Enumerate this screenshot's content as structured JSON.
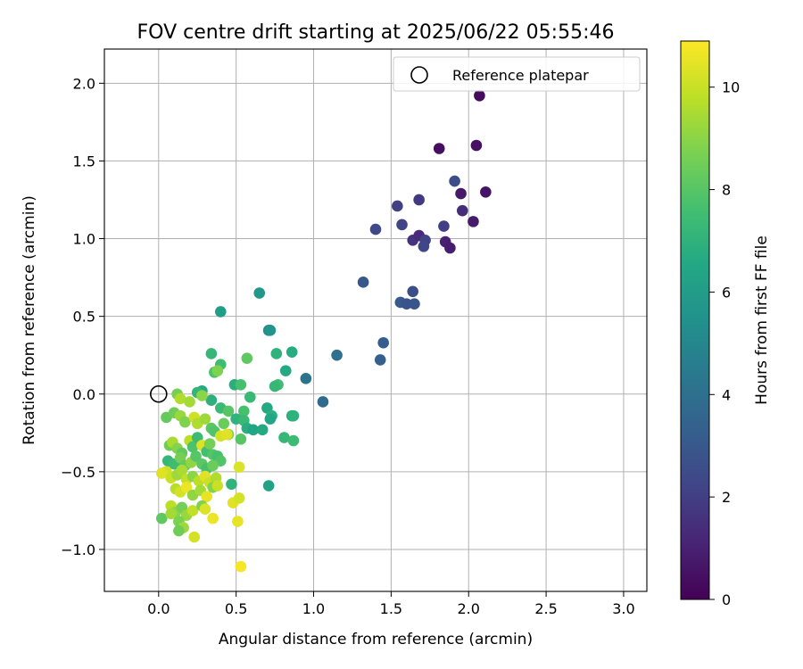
{
  "chart_data": {
    "type": "scatter",
    "title": "FOV centre drift starting at 2025/06/22 05:55:46",
    "xlabel": "Angular distance from reference (arcmin)",
    "ylabel": "Rotation from reference (arcmin)",
    "xlim": [
      -0.35,
      3.15
    ],
    "ylim": [
      -1.27,
      2.22
    ],
    "xticks": [
      0.0,
      0.5,
      1.0,
      1.5,
      2.0,
      2.5,
      3.0
    ],
    "xtick_labels": [
      "0.0",
      "0.5",
      "1.0",
      "1.5",
      "2.0",
      "2.5",
      "3.0"
    ],
    "yticks": [
      -1.0,
      -0.5,
      0.0,
      0.5,
      1.0,
      1.5,
      2.0
    ],
    "ytick_labels": [
      "−1.0",
      "−0.5",
      "0.0",
      "0.5",
      "1.0",
      "1.5",
      "2.0"
    ],
    "grid": true,
    "legend": {
      "placement": "top-right",
      "entries": [
        {
          "label": "Reference platepar",
          "marker": "open-circle"
        }
      ]
    },
    "reference_point": {
      "x": 0.0,
      "y": 0.0
    },
    "colorbar": {
      "label": "Hours from first FF file",
      "range": [
        0,
        10.9
      ],
      "ticks": [
        0,
        2,
        4,
        6,
        8,
        10
      ],
      "tick_labels": [
        "0",
        "2",
        "4",
        "6",
        "8",
        "10"
      ],
      "colormap": "viridis"
    },
    "points": [
      [
        2.07,
        1.92,
        0.3
      ],
      [
        1.81,
        1.58,
        0.4
      ],
      [
        2.05,
        1.6,
        0.5
      ],
      [
        1.91,
        1.37,
        2.6
      ],
      [
        2.11,
        1.3,
        0.6
      ],
      [
        1.95,
        1.29,
        0.7
      ],
      [
        1.96,
        1.18,
        1.4
      ],
      [
        2.03,
        1.11,
        0.8
      ],
      [
        1.54,
        1.21,
        2.0
      ],
      [
        1.68,
        1.25,
        1.8
      ],
      [
        1.84,
        1.08,
        2.0
      ],
      [
        1.57,
        1.09,
        2.2
      ],
      [
        1.4,
        1.06,
        2.4
      ],
      [
        1.64,
        0.99,
        1.6
      ],
      [
        1.68,
        1.02,
        1.3
      ],
      [
        1.72,
        0.99,
        2.1
      ],
      [
        1.71,
        0.95,
        2.3
      ],
      [
        1.85,
        0.98,
        1.0
      ],
      [
        1.88,
        0.94,
        0.9
      ],
      [
        1.32,
        0.72,
        3.0
      ],
      [
        1.64,
        0.66,
        2.6
      ],
      [
        1.56,
        0.59,
        3.1
      ],
      [
        1.6,
        0.58,
        2.8
      ],
      [
        1.65,
        0.58,
        2.9
      ],
      [
        1.45,
        0.33,
        3.2
      ],
      [
        1.43,
        0.22,
        3.3
      ],
      [
        1.15,
        0.25,
        4.0
      ],
      [
        0.95,
        0.1,
        4.2
      ],
      [
        1.06,
        -0.05,
        3.8
      ],
      [
        0.65,
        0.65,
        5.8
      ],
      [
        0.4,
        0.53,
        6.0
      ],
      [
        0.71,
        0.41,
        5.2
      ],
      [
        0.72,
        0.41,
        5.6
      ],
      [
        0.34,
        0.26,
        7.2
      ],
      [
        0.76,
        0.26,
        7.0
      ],
      [
        0.86,
        0.27,
        6.7
      ],
      [
        0.4,
        0.19,
        7.5
      ],
      [
        0.57,
        0.23,
        8.2
      ],
      [
        0.82,
        0.15,
        6.6
      ],
      [
        0.36,
        0.14,
        7.8
      ],
      [
        0.38,
        0.15,
        8.8
      ],
      [
        0.77,
        0.06,
        7.6
      ],
      [
        0.75,
        0.05,
        7.2
      ],
      [
        0.49,
        0.06,
        6.8
      ],
      [
        0.53,
        0.06,
        7.7
      ],
      [
        0.59,
        -0.02,
        7.3
      ],
      [
        0.34,
        -0.04,
        6.9
      ],
      [
        0.28,
        0.02,
        6.6
      ],
      [
        0.25,
        0.01,
        7.1
      ],
      [
        0.12,
        0.0,
        8.6
      ],
      [
        0.14,
        -0.03,
        9.6
      ],
      [
        0.2,
        -0.05,
        9.4
      ],
      [
        0.28,
        -0.01,
        9.0
      ],
      [
        0.7,
        -0.09,
        6.6
      ],
      [
        0.4,
        -0.09,
        7.3
      ],
      [
        0.45,
        -0.11,
        8.0
      ],
      [
        0.55,
        -0.11,
        7.7
      ],
      [
        0.73,
        -0.14,
        6.9
      ],
      [
        0.72,
        -0.16,
        6.5
      ],
      [
        0.86,
        -0.14,
        6.7
      ],
      [
        0.87,
        -0.14,
        7.0
      ],
      [
        0.5,
        -0.16,
        7.0
      ],
      [
        0.55,
        -0.17,
        7.3
      ],
      [
        0.57,
        -0.22,
        6.8
      ],
      [
        0.61,
        -0.23,
        6.4
      ],
      [
        0.67,
        -0.23,
        6.6
      ],
      [
        0.81,
        -0.28,
        7.2
      ],
      [
        0.87,
        -0.3,
        7.4
      ],
      [
        0.53,
        -0.29,
        8.0
      ],
      [
        0.05,
        -0.15,
        8.3
      ],
      [
        0.1,
        -0.12,
        8.5
      ],
      [
        0.14,
        -0.14,
        9.2
      ],
      [
        0.17,
        -0.18,
        8.8
      ],
      [
        0.23,
        -0.15,
        10.1
      ],
      [
        0.25,
        -0.19,
        9.6
      ],
      [
        0.3,
        -0.16,
        9.3
      ],
      [
        0.34,
        -0.22,
        8.1
      ],
      [
        0.36,
        -0.24,
        7.9
      ],
      [
        0.42,
        -0.19,
        8.4
      ],
      [
        0.45,
        -0.26,
        8.7
      ],
      [
        0.4,
        -0.27,
        10.2
      ],
      [
        0.44,
        -0.26,
        10.4
      ],
      [
        0.07,
        -0.33,
        8.5
      ],
      [
        0.09,
        -0.31,
        9.5
      ],
      [
        0.12,
        -0.35,
        8.9
      ],
      [
        0.15,
        -0.38,
        8.2
      ],
      [
        0.2,
        -0.3,
        9.8
      ],
      [
        0.22,
        -0.34,
        7.8
      ],
      [
        0.25,
        -0.28,
        7.4
      ],
      [
        0.28,
        -0.33,
        10.3
      ],
      [
        0.31,
        -0.37,
        7.6
      ],
      [
        0.33,
        -0.32,
        8.6
      ],
      [
        0.35,
        -0.39,
        8.0
      ],
      [
        0.38,
        -0.4,
        7.7
      ],
      [
        0.4,
        -0.43,
        7.9
      ],
      [
        0.06,
        -0.43,
        7.2
      ],
      [
        0.1,
        -0.45,
        7.5
      ],
      [
        0.14,
        -0.41,
        8.6
      ],
      [
        0.17,
        -0.46,
        8.3
      ],
      [
        0.21,
        -0.44,
        9.1
      ],
      [
        0.24,
        -0.4,
        8.0
      ],
      [
        0.28,
        -0.45,
        8.1
      ],
      [
        0.31,
        -0.48,
        7.7
      ],
      [
        0.35,
        -0.46,
        8.4
      ],
      [
        0.05,
        -0.5,
        10.1
      ],
      [
        0.02,
        -0.51,
        10.4
      ],
      [
        0.08,
        -0.54,
        10.0
      ],
      [
        0.12,
        -0.52,
        9.3
      ],
      [
        0.15,
        -0.49,
        9.5
      ],
      [
        0.18,
        -0.55,
        9.9
      ],
      [
        0.22,
        -0.53,
        9.0
      ],
      [
        0.26,
        -0.56,
        9.8
      ],
      [
        0.3,
        -0.53,
        10.4
      ],
      [
        0.33,
        -0.57,
        10.0
      ],
      [
        0.37,
        -0.54,
        9.6
      ],
      [
        0.47,
        -0.58,
        7.0
      ],
      [
        0.52,
        -0.47,
        10.3
      ],
      [
        0.71,
        -0.59,
        6.3
      ],
      [
        0.11,
        -0.61,
        9.7
      ],
      [
        0.14,
        -0.63,
        10.2
      ],
      [
        0.18,
        -0.6,
        10.6
      ],
      [
        0.22,
        -0.65,
        9.1
      ],
      [
        0.27,
        -0.62,
        9.4
      ],
      [
        0.31,
        -0.66,
        10.5
      ],
      [
        0.35,
        -0.6,
        8.9
      ],
      [
        0.38,
        -0.59,
        10.0
      ],
      [
        0.08,
        -0.72,
        9.8
      ],
      [
        0.11,
        -0.76,
        9.0
      ],
      [
        0.15,
        -0.73,
        8.6
      ],
      [
        0.18,
        -0.78,
        9.2
      ],
      [
        0.22,
        -0.75,
        9.9
      ],
      [
        0.28,
        -0.72,
        8.8
      ],
      [
        0.3,
        -0.74,
        10.3
      ],
      [
        0.35,
        -0.8,
        10.6
      ],
      [
        0.48,
        -0.7,
        10.4
      ],
      [
        0.52,
        -0.67,
        10.2
      ],
      [
        0.02,
        -0.8,
        8.2
      ],
      [
        0.08,
        -0.77,
        9.4
      ],
      [
        0.13,
        -0.82,
        8.7
      ],
      [
        0.16,
        -0.86,
        9.3
      ],
      [
        0.13,
        -0.88,
        8.5
      ],
      [
        0.23,
        -0.92,
        10.2
      ],
      [
        0.51,
        -0.82,
        10.5
      ],
      [
        0.53,
        -1.11,
        10.8
      ]
    ]
  }
}
